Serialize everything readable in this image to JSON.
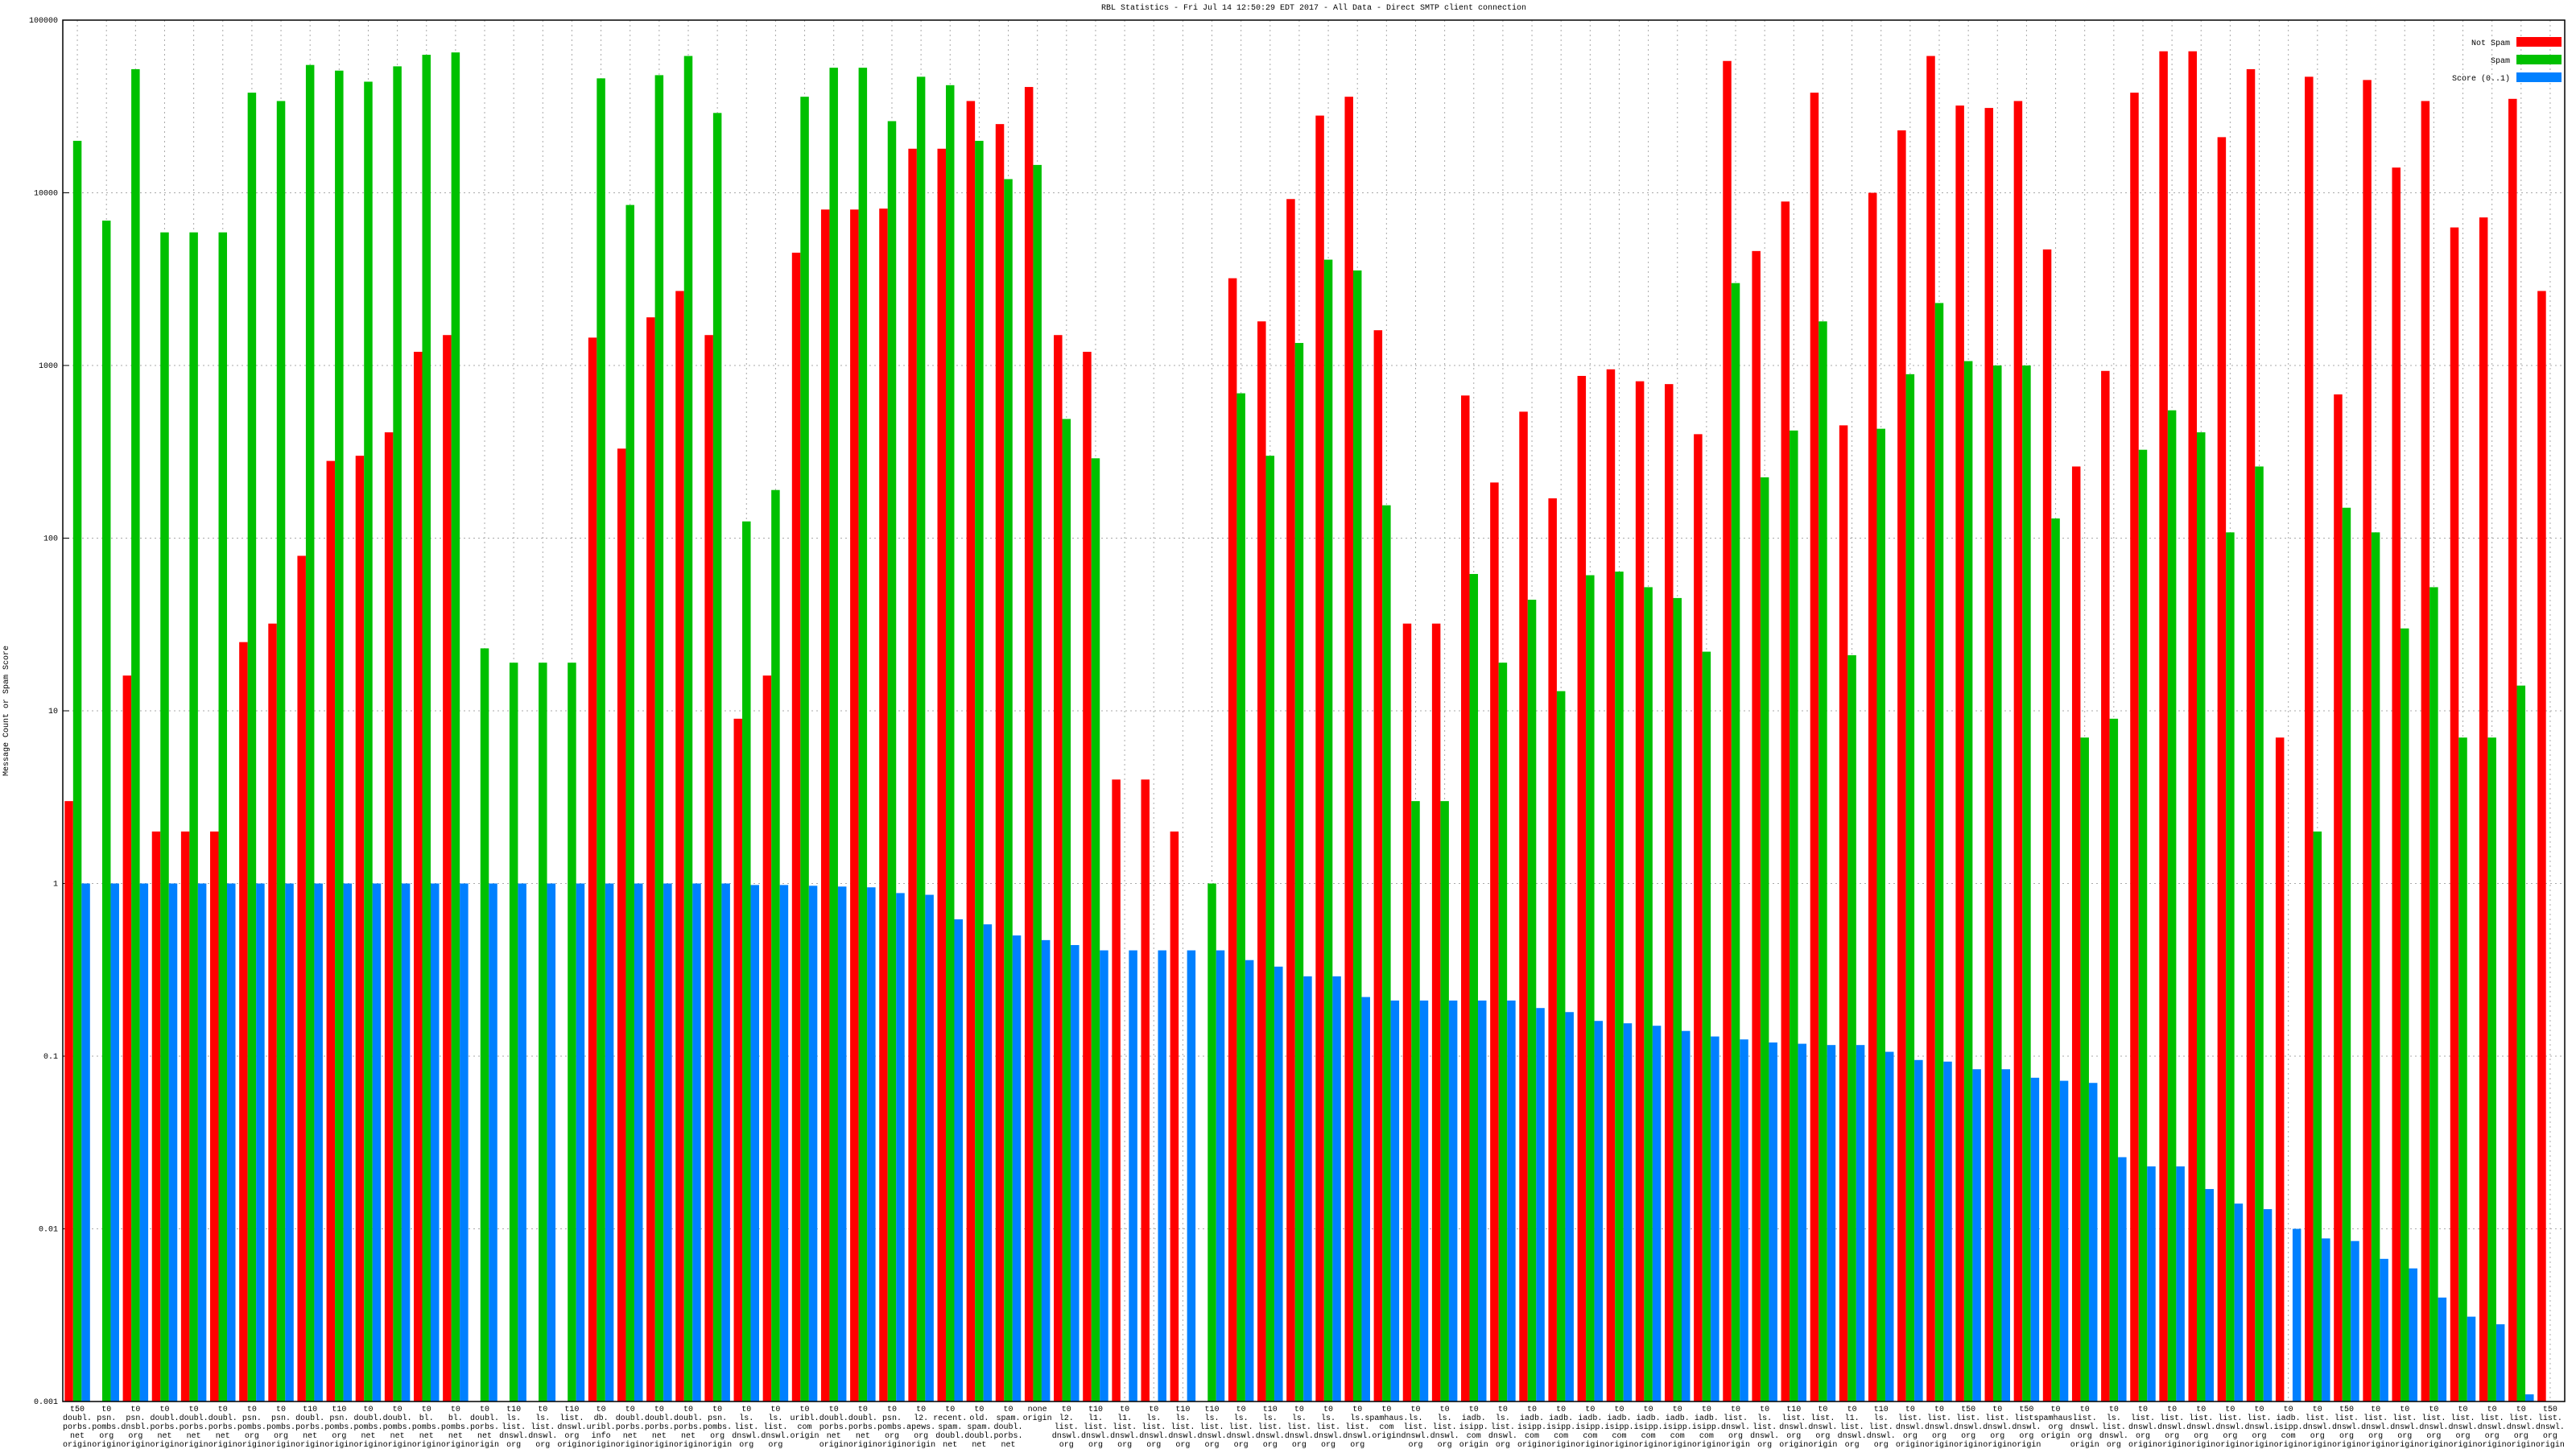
{
  "chart_data": {
    "type": "bar",
    "log_scale": true,
    "grid": true,
    "legend": "top-right",
    "title": "RBL Statistics - Fri Jul 14 12:50:29 EDT 2017 - All Data - Direct SMTP client connection",
    "y_label": "Message Count or Spam Score",
    "ylim": [
      0.001,
      100000
    ],
    "yticks": [
      0.001,
      0.01,
      0.1,
      1,
      10,
      100,
      1000,
      10000,
      100000
    ],
    "categories": [
      "t50 doubl. porbs. net origin",
      "t0 psn. pombs. org origin",
      "t0 psn. dnsbl. org origin",
      "t0 doubl. porbs. net origin",
      "t0 doubl. porbs. net origin",
      "t0 doubl. porbs. net origin",
      "t0 psn. pombs. org origin",
      "t0 psn. pombs. org origin",
      "t10 doubl. porbs. net origin",
      "t10 psn. pombs. org origin",
      "t0 doubl. pombs. net origin",
      "t0 doubl. pombs. net origin",
      "t0 bl. pombs. net origin",
      "t0 bl. pombs. net origin",
      "t0 doubl. porbs. net origin",
      "t10 ls. list. dnswl. org origin",
      "t0 ls. list. dnswl. org origin",
      "t10 list. dnswl. org origin",
      "t0 db. uribl. info origin",
      "t0 doubl. porbs. net origin",
      "t0 doubl. porbs. net origin",
      "t0 doubl. porbs. net origin",
      "t0 psn. pombs. org origin",
      "t0 ls. list. dnswl. org origin",
      "t0 ls. list. dnswl. org origin",
      "t0 uribl. com origin",
      "t0 doubl. porbs. net origin",
      "t0 doubl. porbs. net origin",
      "t0 psn. pombs. org origin",
      "t0 l2. apews. org origin",
      "t0 recent. spam. doubl. net origin",
      "t0 old. spam. doubl. net origin",
      "t0 spam. doubl. porbs. net origin",
      "none origin",
      "t0 l2. list. dnswl. org origin",
      "t10 l1. list. dnswl. org origin",
      "t0 l1. list. dnswl. org origin",
      "t0 ls. list. dnswl. org origin",
      "t10 ls. list. dnswl. org origin",
      "t10 ls. list. dnswl. org origin",
      "t0 ls. list. dnswl. org origin",
      "t10 ls. list. dnswl. org origin",
      "t0 ls. list. dnswl. org origin",
      "t0 ls. list. dnswl. org origin",
      "t0 ls. list. dnswl. org origin",
      "t0 spamhaus. com origin",
      "t0 ls. list. dnswl. org origin",
      "t0 ls. list. dnswl. org origin",
      "t0 iadb. isipp. com origin",
      "t0 ls. list. dnswl. org origin",
      "t0 iadb. isipp. com origin",
      "t0 iadb. isipp. com origin",
      "t0 iadb. isipp. com origin",
      "t0 iadb. isipp. com origin",
      "t0 iadb. isipp. com origin",
      "t0 iadb. isipp. com origin",
      "t0 iadb. isipp. com origin",
      "t0 list. dnswl. org origin",
      "t0 ls. list. dnswl. org origin",
      "t10 list. dnswl. org origin",
      "t0 list. dnswl. org origin",
      "t0 l1. list. dnswl. org origin",
      "t10 ls. list. dnswl. org origin",
      "t0 list. dnswl. org origin",
      "t0 list. dnswl. org origin",
      "t50 list. dnswl. org origin",
      "t0 list. dnswl. org origin",
      "t50 list. dnswl. org origin",
      "t0 spamhaus. org origin",
      "t0 list. dnswl. org origin",
      "t0 ls. list. dnswl. org origin",
      "t0 list. dnswl. org origin",
      "t0 list. dnswl. org origin",
      "t0 list. dnswl. org origin",
      "t0 list. dnswl. org origin",
      "t0 list. dnswl. org origin",
      "t0 iadb. isipp. com origin",
      "t0 list. dnswl. org origin",
      "t50 list. dnswl. org origin",
      "t0 list. dnswl. org origin",
      "t0 list. dnswl. org origin",
      "t0 list. dnswl. org origin",
      "t0 list. dnswl. org origin",
      "t0 list. dnswl. org origin",
      "t0 list. dnswl. org origin",
      "t50 list. dnswl. org origin"
    ],
    "series": [
      {
        "name": "Not Spam",
        "color": "#ff0000",
        "values": [
          3,
          null,
          16,
          2,
          2,
          2,
          25,
          32,
          79,
          280,
          300,
          410,
          1200,
          1500,
          null,
          null,
          null,
          null,
          1450,
          330,
          1900,
          2700,
          1500,
          9,
          16,
          4500,
          8000,
          8000,
          8100,
          18000,
          18000,
          34000,
          25000,
          41000,
          1500,
          1200,
          4,
          4,
          2,
          null,
          3200,
          1800,
          9200,
          28000,
          36000,
          1600,
          32,
          32,
          670,
          210,
          540,
          170,
          870,
          950,
          810,
          780,
          400,
          58000,
          4600,
          8900,
          38000,
          450,
          10000,
          23000,
          62000,
          32000,
          31000,
          34000,
          4700,
          260,
          930,
          38000,
          66000,
          66000,
          21000,
          52000,
          7,
          47000,
          680,
          45000,
          14000,
          34000,
          6300,
          7200,
          35000,
          2700
        ]
      },
      {
        "name": "Spam",
        "color": "#00c000",
        "values": [
          20000,
          6900,
          52000,
          5900,
          5900,
          5900,
          38000,
          34000,
          55000,
          51000,
          44000,
          54000,
          63000,
          65000,
          23,
          19,
          19,
          19,
          46000,
          8500,
          48000,
          62000,
          29000,
          125,
          190,
          36000,
          53000,
          53000,
          26000,
          47000,
          42000,
          20000,
          12000,
          14500,
          490,
          290,
          null,
          null,
          null,
          1,
          690,
          300,
          1350,
          4100,
          3550,
          155,
          3,
          3,
          62,
          19,
          44,
          13,
          61,
          64,
          52,
          45,
          22,
          3000,
          225,
          420,
          1800,
          21,
          430,
          890,
          2300,
          1060,
          1000,
          1000,
          130,
          7,
          9,
          325,
          550,
          410,
          108,
          260,
          null,
          2,
          150,
          108,
          30,
          52,
          7,
          7,
          14,
          null
        ]
      },
      {
        "name": "Score (0..1)",
        "color": "#0080ff",
        "values": [
          1,
          1,
          1,
          1,
          1,
          1,
          1,
          1,
          1,
          1,
          1,
          1,
          1,
          1,
          1,
          1,
          1,
          1,
          1,
          1,
          1,
          1,
          1,
          0.98,
          0.98,
          0.97,
          0.96,
          0.95,
          0.88,
          0.86,
          0.62,
          0.58,
          0.5,
          0.47,
          0.44,
          0.41,
          0.41,
          0.41,
          0.41,
          0.41,
          0.36,
          0.33,
          0.29,
          0.29,
          0.22,
          0.21,
          0.21,
          0.21,
          0.21,
          0.21,
          0.19,
          0.18,
          0.16,
          0.155,
          0.15,
          0.14,
          0.13,
          0.125,
          0.12,
          0.118,
          0.116,
          0.116,
          0.106,
          0.095,
          0.093,
          0.084,
          0.084,
          0.075,
          0.072,
          0.07,
          0.026,
          0.023,
          0.023,
          0.017,
          0.014,
          0.013,
          0.01,
          0.0088,
          0.0085,
          0.0067,
          0.0059,
          0.004,
          0.0031,
          0.0028,
          0.0011,
          null
        ]
      }
    ]
  }
}
